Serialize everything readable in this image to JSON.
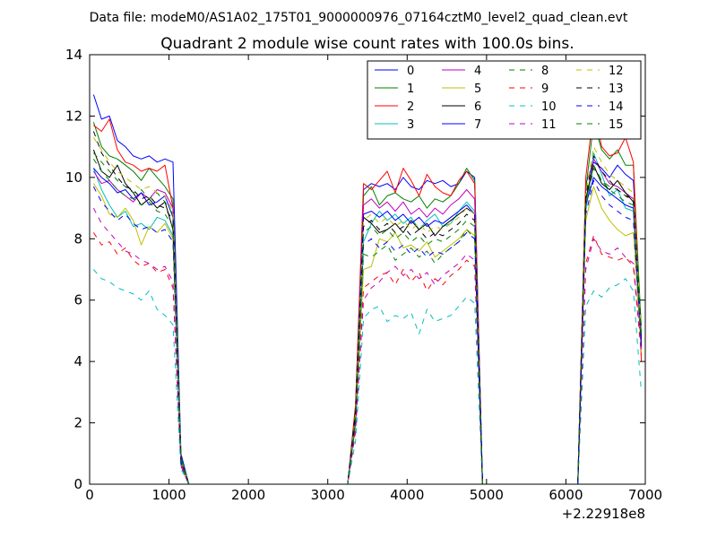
{
  "figure": {
    "suptitle": "Data file: modeM0/AS1A02_175T01_9000000976_07164cztM0_level2_quad_clean.evt"
  },
  "chart_data": {
    "type": "line",
    "title": "Quadrant 2 module wise count rates with 100.0s bins.",
    "xlabel": "",
    "ylabel": "",
    "x_offset_label": "+2.22918e8",
    "xlim": [
      0,
      7000
    ],
    "ylim": [
      0,
      14
    ],
    "xticks": [
      0,
      1000,
      2000,
      3000,
      4000,
      5000,
      6000,
      7000
    ],
    "yticks": [
      0,
      2,
      4,
      6,
      8,
      10,
      12,
      14
    ],
    "grid": false,
    "legend_location": "top-right",
    "legend_columns": 4,
    "x": [
      50,
      150,
      250,
      350,
      450,
      550,
      650,
      750,
      850,
      950,
      1050,
      1150,
      1250,
      1350,
      1450,
      1550,
      1650,
      1750,
      1850,
      1950,
      2050,
      2150,
      2250,
      2350,
      2450,
      2550,
      2650,
      2750,
      2850,
      2950,
      3050,
      3150,
      3250,
      3350,
      3450,
      3550,
      3650,
      3750,
      3850,
      3950,
      4050,
      4150,
      4250,
      4350,
      4450,
      4550,
      4650,
      4750,
      4850,
      4950,
      5050,
      5150,
      5250,
      5350,
      5450,
      5550,
      5650,
      5750,
      5850,
      5950,
      6050,
      6150,
      6250,
      6350,
      6450,
      6550,
      6650,
      6750,
      6850,
      6950
    ],
    "series": [
      {
        "name": "0",
        "color": "#0000ff",
        "dash": "solid",
        "values": [
          12.7,
          11.9,
          12.0,
          11.2,
          11.0,
          10.7,
          10.6,
          10.7,
          10.5,
          10.6,
          10.5,
          1.0,
          0,
          0,
          0,
          0,
          0,
          0,
          0,
          0,
          0,
          0,
          0,
          0,
          0,
          0,
          0,
          0,
          0,
          0,
          0,
          0,
          0,
          2.5,
          9.6,
          9.8,
          9.7,
          9.8,
          9.6,
          10.0,
          9.7,
          9.6,
          9.9,
          9.8,
          9.9,
          9.7,
          9.8,
          10.2,
          10.0,
          0,
          0,
          0,
          0,
          0,
          0,
          0,
          0,
          0,
          0,
          0,
          0,
          0,
          9.8,
          10.5,
          10.3,
          10.0,
          10.4,
          10.1,
          9.9,
          5.0
        ]
      },
      {
        "name": "1",
        "color": "#008000",
        "dash": "solid",
        "values": [
          11.8,
          11.0,
          10.7,
          10.6,
          10.4,
          10.2,
          9.9,
          10.3,
          10.0,
          9.7,
          9.3,
          0.9,
          0,
          0,
          0,
          0,
          0,
          0,
          0,
          0,
          0,
          0,
          0,
          0,
          0,
          0,
          0,
          0,
          0,
          0,
          0,
          0,
          0,
          2.4,
          9.4,
          9.7,
          9.1,
          9.4,
          9.5,
          9.3,
          9.2,
          9.4,
          9.0,
          9.3,
          9.2,
          9.4,
          9.8,
          10.3,
          9.9,
          0,
          0,
          0,
          0,
          0,
          0,
          0,
          0,
          0,
          0,
          0,
          0,
          0,
          9.6,
          11.8,
          10.9,
          10.6,
          10.9,
          10.4,
          10.4,
          5.0
        ]
      },
      {
        "name": "2",
        "color": "#ff0000",
        "dash": "solid",
        "values": [
          11.7,
          11.5,
          11.9,
          10.9,
          10.5,
          10.4,
          10.2,
          10.3,
          10.2,
          10.4,
          9.0,
          0.6,
          0,
          0,
          0,
          0,
          0,
          0,
          0,
          0,
          0,
          0,
          0,
          0,
          0,
          0,
          0,
          0,
          0,
          0,
          0,
          0,
          0,
          2.6,
          9.8,
          9.6,
          9.9,
          10.2,
          9.5,
          10.3,
          9.9,
          9.4,
          10.1,
          9.7,
          9.5,
          9.4,
          9.9,
          10.2,
          9.8,
          0,
          0,
          0,
          0,
          0,
          0,
          0,
          0,
          0,
          0,
          0,
          0,
          0,
          10.0,
          12.2,
          11.0,
          10.7,
          10.8,
          11.3,
          10.5,
          4.0
        ]
      },
      {
        "name": "3",
        "color": "#00bfbf",
        "dash": "solid",
        "values": [
          10.3,
          9.6,
          9.1,
          8.7,
          8.9,
          8.4,
          8.5,
          8.3,
          8.7,
          8.6,
          8.1,
          0.7,
          0,
          0,
          0,
          0,
          0,
          0,
          0,
          0,
          0,
          0,
          0,
          0,
          0,
          0,
          0,
          0,
          0,
          0,
          0,
          0,
          0,
          2.0,
          7.9,
          8.5,
          8.9,
          8.6,
          8.8,
          8.5,
          8.7,
          8.3,
          8.6,
          8.8,
          8.4,
          8.5,
          8.9,
          9.2,
          8.9,
          0,
          0,
          0,
          0,
          0,
          0,
          0,
          0,
          0,
          0,
          0,
          0,
          0,
          8.9,
          10.8,
          10.1,
          9.4,
          9.6,
          9.0,
          8.9,
          4.5
        ]
      },
      {
        "name": "4",
        "color": "#bf00bf",
        "dash": "solid",
        "values": [
          10.2,
          9.8,
          9.9,
          9.6,
          9.4,
          9.2,
          9.5,
          9.3,
          9.6,
          9.5,
          9.0,
          0.7,
          0,
          0,
          0,
          0,
          0,
          0,
          0,
          0,
          0,
          0,
          0,
          0,
          0,
          0,
          0,
          0,
          0,
          0,
          0,
          0,
          0,
          2.3,
          9.1,
          9.3,
          9.0,
          9.2,
          8.9,
          9.2,
          8.8,
          9.0,
          8.7,
          9.0,
          8.8,
          9.1,
          9.3,
          9.6,
          9.3,
          0,
          0,
          0,
          0,
          0,
          0,
          0,
          0,
          0,
          0,
          0,
          0,
          0,
          9.2,
          10.6,
          10.2,
          9.8,
          9.7,
          9.5,
          9.3,
          4.8
        ]
      },
      {
        "name": "5",
        "color": "#bfbf00",
        "dash": "solid",
        "values": [
          9.8,
          9.4,
          8.8,
          8.7,
          9.0,
          8.6,
          7.8,
          8.4,
          8.2,
          8.5,
          8.0,
          0.6,
          0,
          0,
          0,
          0,
          0,
          0,
          0,
          0,
          0,
          0,
          0,
          0,
          0,
          0,
          0,
          0,
          0,
          0,
          0,
          0,
          0,
          1.9,
          7.0,
          7.1,
          8.0,
          7.9,
          8.2,
          7.7,
          7.8,
          7.6,
          7.9,
          7.4,
          7.6,
          7.8,
          8.0,
          8.3,
          8.1,
          0,
          0,
          0,
          0,
          0,
          0,
          0,
          0,
          0,
          0,
          0,
          0,
          0,
          8.6,
          9.7,
          9.0,
          8.6,
          8.3,
          8.1,
          8.2,
          4.3
        ]
      },
      {
        "name": "6",
        "color": "#000000",
        "dash": "solid",
        "values": [
          10.9,
          10.2,
          10.0,
          10.4,
          9.8,
          9.5,
          9.1,
          9.3,
          9.0,
          9.2,
          8.3,
          0.8,
          0,
          0,
          0,
          0,
          0,
          0,
          0,
          0,
          0,
          0,
          0,
          0,
          0,
          0,
          0,
          0,
          0,
          0,
          0,
          0,
          0,
          2.4,
          8.7,
          8.5,
          8.2,
          8.3,
          8.5,
          8.2,
          8.6,
          8.3,
          8.5,
          8.1,
          8.4,
          8.6,
          8.8,
          9.0,
          8.8,
          0,
          0,
          0,
          0,
          0,
          0,
          0,
          0,
          0,
          0,
          0,
          0,
          0,
          9.3,
          10.4,
          9.8,
          9.6,
          9.9,
          9.5,
          9.2,
          4.7
        ]
      },
      {
        "name": "7",
        "color": "#0000ff",
        "dash": "solid",
        "values": [
          10.3,
          10.0,
          9.8,
          9.5,
          9.6,
          9.3,
          9.5,
          9.1,
          9.2,
          9.4,
          8.7,
          0.8,
          0,
          0,
          0,
          0,
          0,
          0,
          0,
          0,
          0,
          0,
          0,
          0,
          0,
          0,
          0,
          0,
          0,
          0,
          0,
          0,
          0,
          2.2,
          8.8,
          8.9,
          8.7,
          8.9,
          8.6,
          8.8,
          8.5,
          8.7,
          8.4,
          8.6,
          8.5,
          8.7,
          8.9,
          9.1,
          8.8,
          0,
          0,
          0,
          0,
          0,
          0,
          0,
          0,
          0,
          0,
          0,
          0,
          0,
          9.1,
          10.0,
          9.7,
          9.5,
          9.3,
          9.1,
          9.0,
          4.6
        ]
      },
      {
        "name": "8",
        "color": "#008000",
        "dash": "dashed",
        "values": [
          10.8,
          10.5,
          10.2,
          9.9,
          9.7,
          9.5,
          9.6,
          9.3,
          9.5,
          9.2,
          8.8,
          0.8,
          0,
          0,
          0,
          0,
          0,
          0,
          0,
          0,
          0,
          0,
          0,
          0,
          0,
          0,
          0,
          0,
          0,
          0,
          0,
          0,
          0,
          2.0,
          7.5,
          7.4,
          7.6,
          7.8,
          7.3,
          7.5,
          7.7,
          7.4,
          7.6,
          7.2,
          7.5,
          7.7,
          7.9,
          8.3,
          8.0,
          0,
          0,
          0,
          0,
          0,
          0,
          0,
          0,
          0,
          0,
          0,
          0,
          0,
          9.0,
          10.3,
          9.9,
          9.7,
          9.6,
          9.4,
          9.2,
          4.8
        ]
      },
      {
        "name": "9",
        "color": "#ff0000",
        "dash": "dashed",
        "values": [
          8.2,
          7.8,
          7.9,
          7.5,
          7.7,
          7.3,
          7.1,
          7.2,
          6.9,
          7.0,
          6.4,
          0.6,
          0,
          0,
          0,
          0,
          0,
          0,
          0,
          0,
          0,
          0,
          0,
          0,
          0,
          0,
          0,
          0,
          0,
          0,
          0,
          0,
          0,
          1.7,
          6.4,
          6.6,
          6.8,
          6.9,
          6.5,
          7.0,
          6.6,
          6.9,
          6.3,
          6.7,
          6.5,
          6.8,
          7.0,
          7.3,
          7.1,
          0,
          0,
          0,
          0,
          0,
          0,
          0,
          0,
          0,
          0,
          0,
          0,
          0,
          7.2,
          8.1,
          7.5,
          7.4,
          7.3,
          7.4,
          7.1,
          4.2
        ]
      },
      {
        "name": "10",
        "color": "#00bfbf",
        "dash": "dashed",
        "values": [
          7.0,
          6.7,
          6.6,
          6.4,
          6.3,
          6.2,
          6.0,
          6.3,
          5.7,
          5.5,
          5.2,
          0.5,
          0,
          0,
          0,
          0,
          0,
          0,
          0,
          0,
          0,
          0,
          0,
          0,
          0,
          0,
          0,
          0,
          0,
          0,
          0,
          0,
          0,
          1.4,
          5.4,
          5.7,
          5.8,
          5.3,
          5.5,
          5.4,
          5.6,
          4.9,
          5.7,
          5.3,
          5.4,
          5.5,
          5.8,
          6.1,
          5.9,
          0,
          0,
          0,
          0,
          0,
          0,
          0,
          0,
          0,
          0,
          0,
          0,
          0,
          5.8,
          6.3,
          6.1,
          6.4,
          6.5,
          6.7,
          6.3,
          3.0
        ]
      },
      {
        "name": "11",
        "color": "#bf00bf",
        "dash": "dashed",
        "values": [
          9.0,
          8.5,
          8.2,
          7.9,
          7.6,
          7.5,
          7.3,
          7.2,
          7.0,
          7.1,
          6.6,
          0.6,
          0,
          0,
          0,
          0,
          0,
          0,
          0,
          0,
          0,
          0,
          0,
          0,
          0,
          0,
          0,
          0,
          0,
          0,
          0,
          0,
          0,
          1.8,
          6.0,
          6.4,
          6.6,
          6.9,
          7.1,
          6.8,
          7.0,
          6.7,
          6.9,
          6.5,
          6.8,
          7.0,
          7.2,
          7.5,
          7.3,
          0,
          0,
          0,
          0,
          0,
          0,
          0,
          0,
          0,
          0,
          0,
          0,
          0,
          7.0,
          8.0,
          7.6,
          7.5,
          7.7,
          7.4,
          7.2,
          4.4
        ]
      },
      {
        "name": "12",
        "color": "#bfbf00",
        "dash": "dashed",
        "values": [
          11.3,
          10.9,
          10.5,
          10.2,
          10.0,
          9.8,
          9.6,
          9.7,
          9.5,
          9.4,
          8.9,
          0.8,
          0,
          0,
          0,
          0,
          0,
          0,
          0,
          0,
          0,
          0,
          0,
          0,
          0,
          0,
          0,
          0,
          0,
          0,
          0,
          0,
          0,
          2.3,
          8.6,
          8.8,
          8.5,
          8.7,
          8.4,
          8.6,
          8.3,
          8.5,
          8.2,
          8.4,
          8.3,
          8.5,
          8.7,
          9.0,
          8.8,
          0,
          0,
          0,
          0,
          0,
          0,
          0,
          0,
          0,
          0,
          0,
          0,
          0,
          9.5,
          11.0,
          10.5,
          10.1,
          9.9,
          9.7,
          9.5,
          4.9
        ]
      },
      {
        "name": "13",
        "color": "#000000",
        "dash": "dashed",
        "values": [
          11.5,
          10.8,
          10.4,
          10.0,
          9.7,
          9.6,
          9.3,
          9.4,
          9.1,
          9.0,
          8.6,
          0.8,
          0,
          0,
          0,
          0,
          0,
          0,
          0,
          0,
          0,
          0,
          0,
          0,
          0,
          0,
          0,
          0,
          0,
          0,
          0,
          0,
          0,
          2.2,
          8.4,
          8.6,
          8.3,
          8.5,
          8.2,
          8.4,
          8.1,
          8.3,
          8.0,
          8.2,
          8.1,
          8.3,
          8.5,
          8.8,
          8.6,
          0,
          0,
          0,
          0,
          0,
          0,
          0,
          0,
          0,
          0,
          0,
          0,
          0,
          9.4,
          10.7,
          10.2,
          9.9,
          9.6,
          9.4,
          9.3,
          4.8
        ]
      },
      {
        "name": "14",
        "color": "#0000ff",
        "dash": "dashed",
        "values": [
          9.7,
          9.2,
          8.9,
          8.6,
          8.8,
          8.5,
          8.3,
          8.4,
          8.2,
          8.3,
          7.9,
          0.7,
          0,
          0,
          0,
          0,
          0,
          0,
          0,
          0,
          0,
          0,
          0,
          0,
          0,
          0,
          0,
          0,
          0,
          0,
          0,
          0,
          0,
          2.0,
          7.8,
          8.0,
          7.7,
          7.9,
          7.6,
          7.8,
          7.5,
          7.7,
          7.4,
          7.6,
          7.5,
          7.7,
          7.9,
          8.2,
          8.0,
          0,
          0,
          0,
          0,
          0,
          0,
          0,
          0,
          0,
          0,
          0,
          0,
          0,
          8.8,
          9.9,
          9.4,
          9.1,
          8.9,
          8.7,
          8.6,
          4.5
        ]
      },
      {
        "name": "15",
        "color": "#008000",
        "dash": "dashed",
        "values": [
          10.6,
          10.2,
          9.9,
          9.6,
          9.4,
          9.3,
          9.1,
          9.2,
          8.9,
          8.8,
          8.4,
          0.8,
          0,
          0,
          0,
          0,
          0,
          0,
          0,
          0,
          0,
          0,
          0,
          0,
          0,
          0,
          0,
          0,
          0,
          0,
          0,
          0,
          0,
          2.1,
          8.2,
          8.4,
          8.1,
          8.3,
          8.0,
          8.2,
          7.9,
          8.1,
          7.8,
          8.0,
          7.9,
          8.1,
          8.3,
          8.6,
          8.4,
          0,
          0,
          0,
          0,
          0,
          0,
          0,
          0,
          0,
          0,
          0,
          0,
          0,
          9.2,
          10.4,
          9.9,
          9.6,
          9.4,
          9.2,
          9.1,
          4.7
        ]
      }
    ]
  }
}
